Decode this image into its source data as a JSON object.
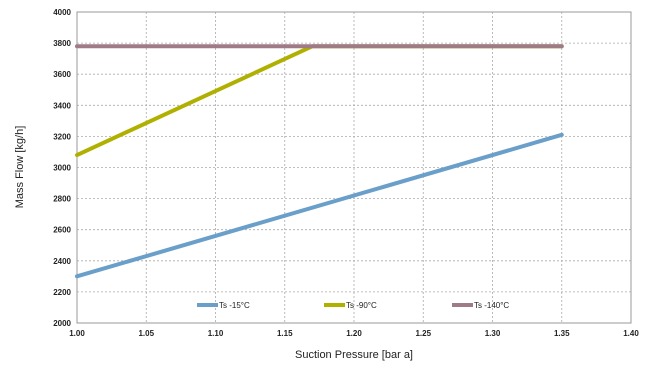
{
  "chart_data": {
    "type": "line",
    "title": "",
    "xlabel": "Suction Pressure [bar a]",
    "ylabel": "Mass Flow [kg/h]",
    "xlim": [
      1.0,
      1.4
    ],
    "ylim": [
      2000,
      4000
    ],
    "x_ticks": [
      "1.00",
      "1.05",
      "1.10",
      "1.15",
      "1.20",
      "1.25",
      "1.30",
      "1.35",
      "1.40"
    ],
    "y_ticks": [
      "2000",
      "2200",
      "2400",
      "2600",
      "2800",
      "3000",
      "3200",
      "3400",
      "3600",
      "3800",
      "4000"
    ],
    "grid": true,
    "legend_position": "bottom-inside",
    "series": [
      {
        "name": "Ts -15°C",
        "color": "#6a9fca",
        "points": [
          [
            1.0,
            2300
          ],
          [
            1.35,
            3210
          ]
        ]
      },
      {
        "name": "Ts -90°C",
        "color": "#b0b000",
        "points": [
          [
            1.0,
            3080
          ],
          [
            1.17,
            3780
          ],
          [
            1.35,
            3780
          ]
        ]
      },
      {
        "name": "Ts -140°C",
        "color": "#9e7b87",
        "points": [
          [
            1.0,
            3780
          ],
          [
            1.35,
            3780
          ]
        ]
      }
    ]
  }
}
